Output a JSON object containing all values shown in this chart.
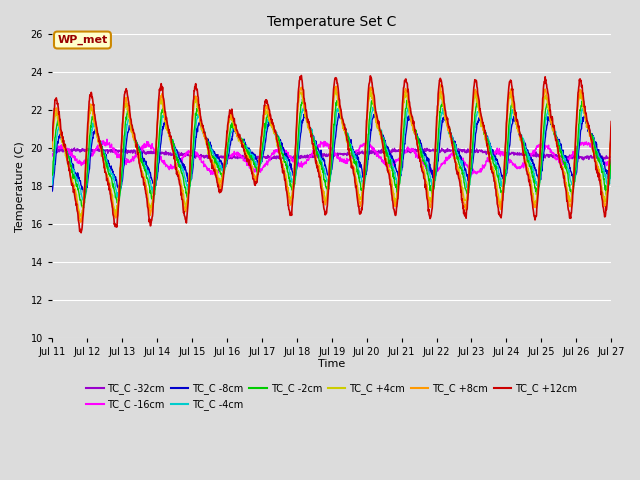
{
  "title": "Temperature Set C",
  "xlabel": "Time",
  "ylabel": "Temperature (C)",
  "ylim": [
    10,
    26
  ],
  "yticks": [
    10,
    12,
    14,
    16,
    18,
    20,
    22,
    24,
    26
  ],
  "background_color": "#dcdcdc",
  "annotation_text": "WP_met",
  "annotation_bg": "#ffffcc",
  "annotation_border": "#cc8800",
  "colors": {
    "TC_C -32cm": "#9900cc",
    "TC_C -16cm": "#ff00ff",
    "TC_C -8cm": "#0000cc",
    "TC_C -4cm": "#00cccc",
    "TC_C -2cm": "#00cc00",
    "TC_C +4cm": "#cccc00",
    "TC_C +8cm": "#ff9900",
    "TC_C +12cm": "#cc0000"
  },
  "x_start": 11,
  "x_end": 27,
  "xtick_positions": [
    11,
    12,
    13,
    14,
    15,
    16,
    17,
    18,
    19,
    20,
    21,
    22,
    23,
    24,
    25,
    26,
    27
  ],
  "xtick_labels": [
    "Jul 11",
    "Jul 12",
    "Jul 13",
    "Jul 14",
    "Jul 15",
    "Jul 16",
    "Jul 17",
    "Jul 18",
    "Jul 19",
    "Jul 20",
    "Jul 21",
    "Jul 22",
    "Jul 23",
    "Jul 24",
    "Jul 25",
    "Jul 26",
    "Jul 27"
  ]
}
